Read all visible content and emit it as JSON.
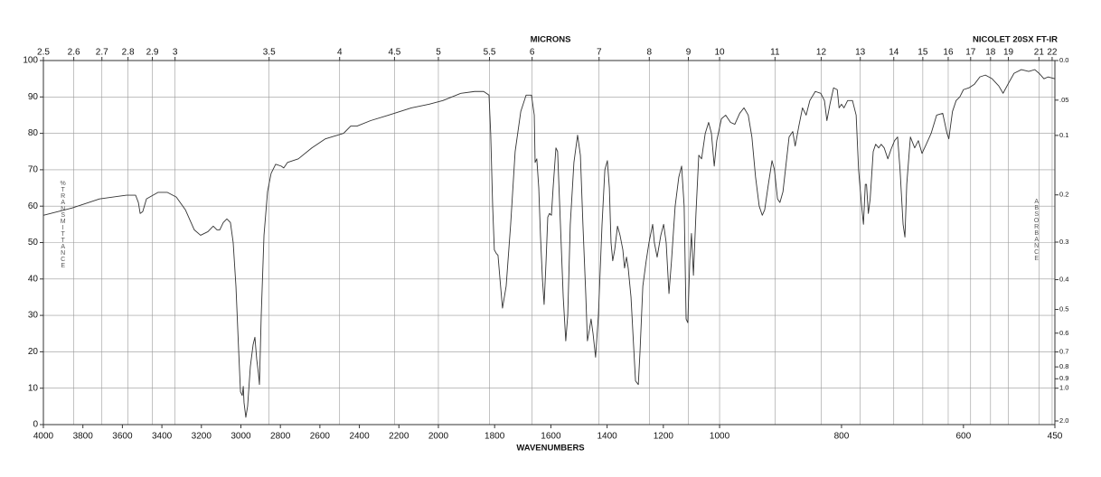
{
  "chart_data": {
    "type": "line",
    "x_label": "WAVENUMBERS",
    "x2_label": "MICRONS",
    "annotation": "NICOLET 20SX FT-IR",
    "y_label": "%TRANSMITTANCE",
    "y2_label": "ABSORBANCE",
    "color": "#333333",
    "grid": true,
    "xlim": [
      4000,
      450
    ],
    "xscale_breaks": [
      2000,
      1000
    ],
    "xticks": [
      4000,
      3800,
      3600,
      3400,
      3200,
      3000,
      2800,
      2600,
      2400,
      2200,
      2000,
      1800,
      1600,
      1400,
      1200,
      1000,
      800,
      600,
      450
    ],
    "x2ticks": [
      2.5,
      2.6,
      2.7,
      2.8,
      2.9,
      3,
      3.5,
      4,
      4.5,
      5,
      5.5,
      6,
      7,
      8,
      9,
      10,
      11,
      12,
      13,
      14,
      15,
      16,
      17,
      18,
      19,
      21,
      22
    ],
    "ylim": [
      0,
      100
    ],
    "yticks": [
      0,
      10,
      20,
      30,
      40,
      50,
      60,
      70,
      80,
      90,
      100
    ],
    "y2ticks": [
      {
        "value": 0,
        "label": "0.0"
      },
      {
        "value": 0.05,
        "label": ".05"
      },
      0.1,
      0.2,
      0.3,
      0.4,
      0.5,
      0.6,
      0.7,
      0.8,
      0.9,
      {
        "value": 1,
        "label": "1.0"
      },
      {
        "value": 2,
        "label": "2.0"
      }
    ],
    "x": [
      4000,
      3854,
      3716,
      3579,
      3533,
      3519,
      3510,
      3497,
      3478,
      3419,
      3373,
      3327,
      3281,
      3236,
      3204,
      3167,
      3140,
      3121,
      3107,
      3089,
      3071,
      3053,
      3039,
      3025,
      3011,
      3002,
      2993,
      2988,
      2984,
      2975,
      2966,
      2952,
      2938,
      2929,
      2920,
      2911,
      2906,
      2897,
      2883,
      2865,
      2847,
      2824,
      2796,
      2783,
      2764,
      2709,
      2641,
      2572,
      2480,
      2444,
      2412,
      2343,
      2252,
      2137,
      2046,
      1984,
      1920,
      1871,
      1839,
      1820,
      1814,
      1807,
      1801,
      1794,
      1788,
      1781,
      1772,
      1759,
      1743,
      1727,
      1707,
      1688,
      1669,
      1659,
      1656,
      1650,
      1643,
      1637,
      1630,
      1624,
      1617,
      1611,
      1605,
      1598,
      1592,
      1582,
      1576,
      1566,
      1556,
      1547,
      1540,
      1531,
      1518,
      1505,
      1495,
      1486,
      1476,
      1470,
      1463,
      1457,
      1450,
      1441,
      1431,
      1418,
      1408,
      1399,
      1392,
      1386,
      1380,
      1373,
      1363,
      1354,
      1344,
      1338,
      1331,
      1325,
      1315,
      1306,
      1299,
      1289,
      1283,
      1273,
      1261,
      1251,
      1238,
      1232,
      1222,
      1209,
      1199,
      1190,
      1180,
      1171,
      1158,
      1145,
      1135,
      1126,
      1119,
      1113,
      1106,
      1100,
      1093,
      1084,
      1074,
      1064,
      1051,
      1039,
      1029,
      1019,
      1010,
      997,
      990,
      982,
      975,
      967,
      960,
      953,
      947,
      941,
      935,
      930,
      926,
      920,
      914,
      910,
      905,
      901,
      896,
      892,
      886,
      880,
      876,
      870,
      864,
      858,
      852,
      843,
      834,
      828,
      824,
      819,
      813,
      807,
      804,
      800,
      796,
      790,
      782,
      776,
      772,
      767,
      764,
      761,
      759,
      756,
      753,
      748,
      744,
      739,
      735,
      730,
      724,
      719,
      713,
      708,
      704,
      699,
      696,
      693,
      687,
      680,
      674,
      668,
      661,
      653,
      644,
      634,
      627,
      624,
      618,
      612,
      606,
      600,
      591,
      582,
      573,
      564,
      553,
      542,
      535,
      527,
      517,
      505,
      493,
      483,
      476,
      468,
      461,
      450
    ],
    "values": [
      57.5,
      59.5,
      62,
      63,
      63,
      61,
      58,
      58.5,
      62,
      63.8,
      63.8,
      62.5,
      59,
      53.5,
      52,
      53,
      54.5,
      53.5,
      53.5,
      55.5,
      56.5,
      55.5,
      50,
      38,
      20,
      9,
      8,
      10.5,
      6,
      2,
      5,
      16,
      22,
      24,
      18,
      14,
      11,
      30,
      52,
      64,
      69,
      71.5,
      71,
      70.5,
      72,
      73,
      76,
      78.5,
      80,
      82,
      82,
      83.5,
      85,
      87,
      88,
      89,
      91,
      91.5,
      91.5,
      90.5,
      80,
      60,
      48,
      47,
      46.5,
      40,
      32,
      38,
      55,
      75,
      86,
      90.5,
      90.5,
      85,
      72,
      73,
      65,
      52,
      40,
      33,
      45,
      57,
      58,
      57.5,
      65,
      76,
      75,
      55,
      35,
      23,
      30,
      55,
      72,
      79.5,
      74,
      55,
      36,
      23,
      26,
      29,
      25,
      18.5,
      30,
      55,
      70,
      72.5,
      65,
      50,
      45,
      48,
      54.5,
      52,
      48,
      43,
      46,
      43,
      35,
      22,
      12,
      11,
      20,
      38,
      45,
      50,
      55,
      50,
      46,
      52,
      55,
      50,
      36,
      45,
      60,
      68,
      71,
      60,
      29,
      28,
      45,
      52.5,
      41,
      58,
      74,
      73,
      80,
      83,
      80,
      71,
      78,
      84,
      85,
      83,
      82.5,
      85.5,
      87,
      85,
      79,
      68,
      60,
      57.5,
      59,
      66,
      72.5,
      70,
      62,
      61,
      64,
      70,
      79,
      80.5,
      76.5,
      82,
      87,
      85,
      89,
      91.5,
      91,
      89,
      83.5,
      88,
      92.5,
      92,
      87,
      88,
      87,
      89,
      89,
      85,
      70,
      60,
      55,
      66,
      66,
      58,
      62,
      75,
      77,
      76,
      77,
      76,
      73,
      75.5,
      78,
      79,
      70,
      55,
      51.5,
      66,
      79,
      76,
      78,
      74.5,
      77,
      80,
      85,
      85.5,
      80,
      78.5,
      86,
      89,
      90,
      92,
      92.5,
      93.5,
      95.5,
      96,
      95,
      93,
      91,
      93.5,
      96.5,
      97.5,
      97,
      97.5,
      96.5,
      95,
      95.5,
      95
    ]
  }
}
